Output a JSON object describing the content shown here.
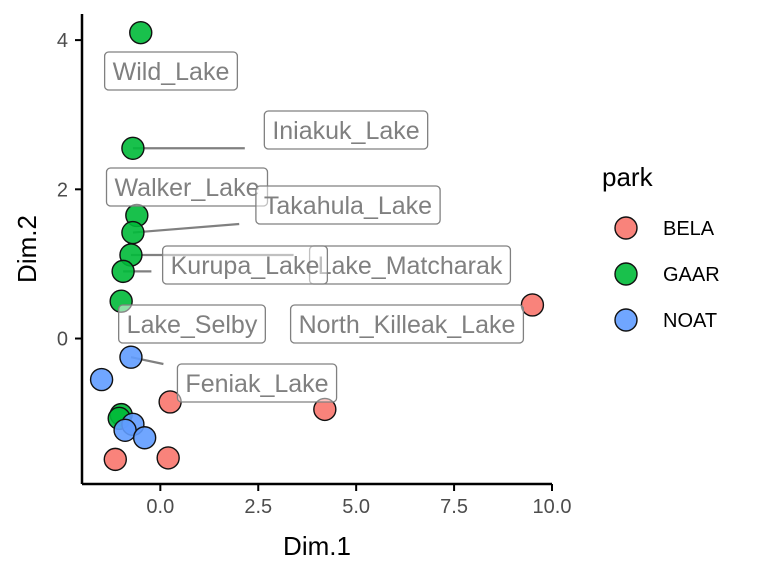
{
  "chart_data": {
    "type": "scatter",
    "xlabel": "Dim.1",
    "ylabel": "Dim.2",
    "xlim": [
      -2.0,
      10.0
    ],
    "ylim": [
      -1.95,
      4.35
    ],
    "x_ticks": [
      0,
      2.5,
      5,
      7.5,
      10
    ],
    "x_tick_labels": [
      "0.0",
      "2.5",
      "5.0",
      "7.5",
      "10.0"
    ],
    "y_ticks": [
      0,
      2,
      4
    ],
    "y_tick_labels": [
      "0",
      "2",
      "4"
    ],
    "grid": false,
    "legend": {
      "title": "park",
      "position": "right",
      "entries": [
        {
          "name": "BELA",
          "color": "#F8766D"
        },
        {
          "name": "GAAR",
          "color": "#00BA38"
        },
        {
          "name": "NOAT",
          "color": "#619CFF"
        }
      ]
    },
    "series": [
      {
        "name": "BELA",
        "color": "#F8766D",
        "points": [
          {
            "x": 9.5,
            "y": 0.45,
            "label": "North_Killeak_Lake"
          },
          {
            "x": 4.2,
            "y": -0.95,
            "label": ""
          },
          {
            "x": 0.25,
            "y": -0.85,
            "label": ""
          },
          {
            "x": 0.2,
            "y": -1.6,
            "label": ""
          },
          {
            "x": -1.15,
            "y": -1.62,
            "label": ""
          }
        ]
      },
      {
        "name": "GAAR",
        "color": "#00BA38",
        "points": [
          {
            "x": -0.5,
            "y": 4.1,
            "label": "Wild_Lake"
          },
          {
            "x": -0.7,
            "y": 2.55,
            "label": "Iniakuk_Lake"
          },
          {
            "x": -0.6,
            "y": 1.65,
            "label": "Walker_Lake"
          },
          {
            "x": -0.7,
            "y": 1.42,
            "label": "Takahula_Lake"
          },
          {
            "x": -0.75,
            "y": 1.12,
            "label": "Lake_Matcharak"
          },
          {
            "x": -0.95,
            "y": 0.9,
            "label": "Kurupa_Lake"
          },
          {
            "x": -1.0,
            "y": 0.5,
            "label": "Lake_Selby"
          },
          {
            "x": -1.0,
            "y": -1.02,
            "label": ""
          },
          {
            "x": -1.05,
            "y": -1.07,
            "label": ""
          }
        ]
      },
      {
        "name": "NOAT",
        "color": "#619CFF",
        "points": [
          {
            "x": -0.75,
            "y": -0.25,
            "label": "Feniak_Lake"
          },
          {
            "x": -1.5,
            "y": -0.55,
            "label": ""
          },
          {
            "x": -0.7,
            "y": -1.15,
            "label": ""
          },
          {
            "x": -0.9,
            "y": -1.23,
            "label": ""
          },
          {
            "x": -0.4,
            "y": -1.33,
            "label": ""
          }
        ]
      }
    ]
  }
}
